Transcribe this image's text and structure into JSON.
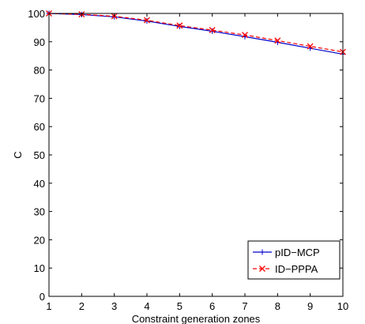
{
  "chart_data": {
    "type": "line",
    "title": "",
    "xlabel": "Constraint generation zones",
    "ylabel": "C",
    "x": [
      1,
      2,
      3,
      4,
      5,
      6,
      7,
      8,
      9,
      10
    ],
    "xlim": [
      1,
      10
    ],
    "ylim": [
      0,
      100
    ],
    "xticks": [
      "1",
      "2",
      "3",
      "4",
      "5",
      "6",
      "7",
      "8",
      "9",
      "10"
    ],
    "yticks": [
      "0",
      "10",
      "20",
      "30",
      "40",
      "50",
      "60",
      "70",
      "80",
      "90",
      "100"
    ],
    "grid": false,
    "legend_position": "bottom-right",
    "series": [
      {
        "name": "pID−MCP",
        "color": "#0000cc",
        "line_style": "solid",
        "marker": "plus",
        "values": [
          100,
          99.6,
          98.8,
          97.3,
          95.4,
          93.7,
          91.8,
          89.8,
          87.7,
          85.6
        ]
      },
      {
        "name": "ID−PPPA",
        "color": "#ff0000",
        "line_style": "dashed",
        "marker": "x",
        "values": [
          100,
          99.7,
          99.0,
          97.6,
          95.7,
          94.1,
          92.4,
          90.4,
          88.4,
          86.4
        ]
      }
    ]
  }
}
